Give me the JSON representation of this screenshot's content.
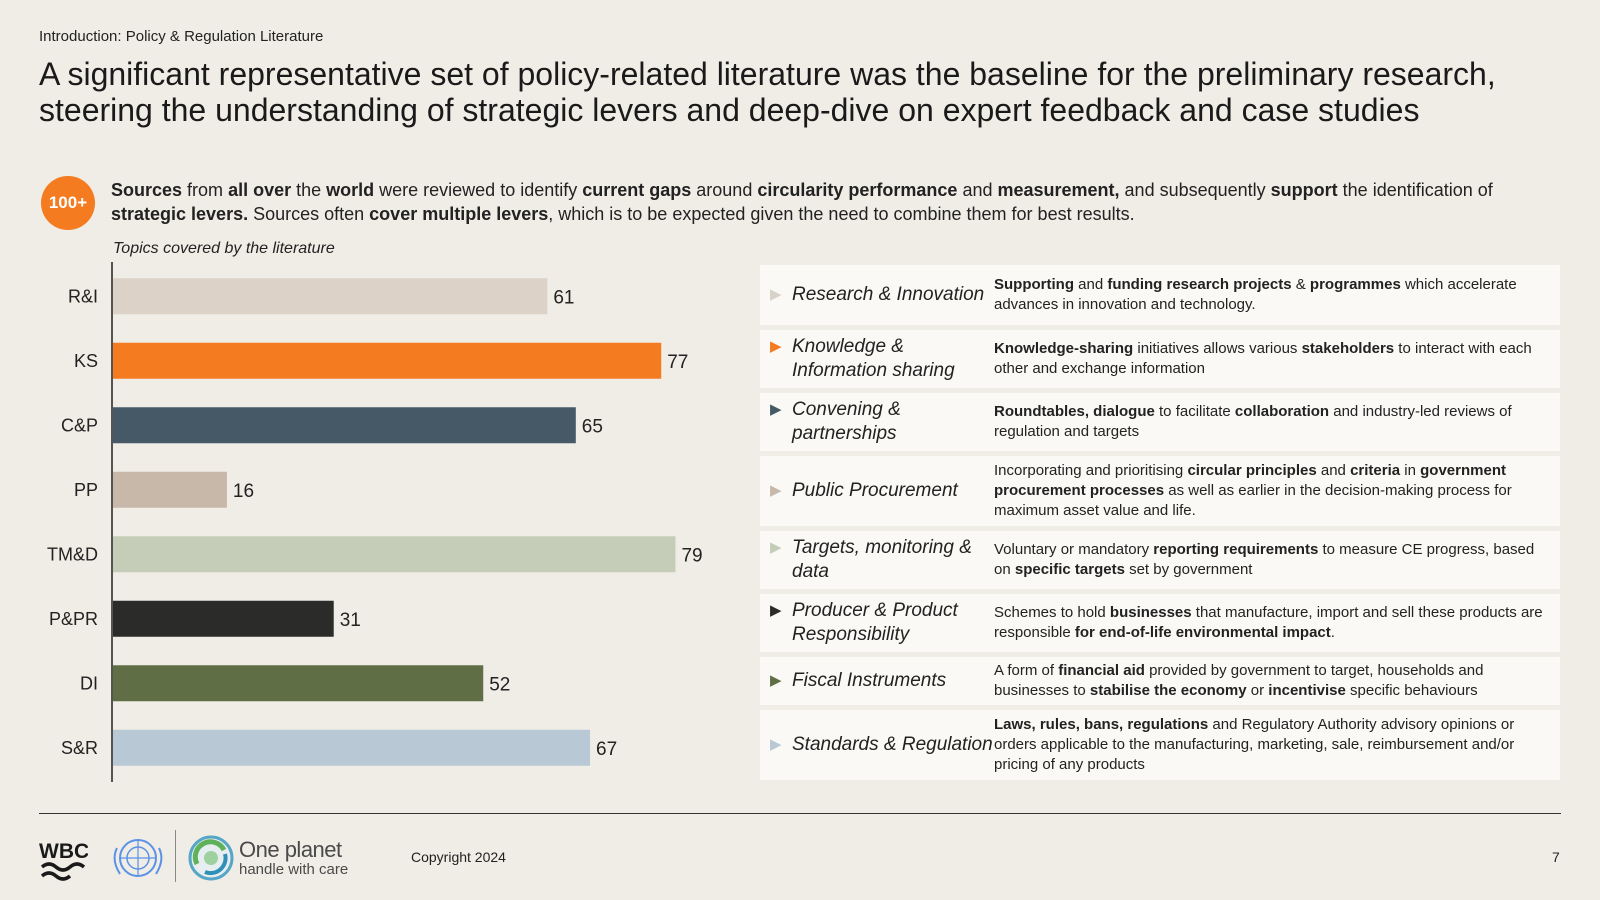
{
  "breadcrumb": "Introduction: Policy & Regulation Literature",
  "headline": "A significant representative set of policy-related literature was the baseline for the preliminary research, steering the understanding of strategic levers and deep-dive on expert feedback and case studies",
  "badge": "100+",
  "intro": {
    "segments": [
      {
        "t": "Sources",
        "b": true
      },
      {
        "t": " from ",
        "b": false
      },
      {
        "t": "all over",
        "b": true
      },
      {
        "t": " the ",
        "b": false
      },
      {
        "t": "world",
        "b": true
      },
      {
        "t": " were reviewed to identify ",
        "b": false
      },
      {
        "t": "current gaps",
        "b": true
      },
      {
        "t": " around ",
        "b": false
      },
      {
        "t": "circularity performance",
        "b": true
      },
      {
        "t": " and ",
        "b": false
      },
      {
        "t": "measurement,",
        "b": true
      },
      {
        "t": " and subsequently ",
        "b": false
      },
      {
        "t": "support",
        "b": true
      },
      {
        "t": " the identification of ",
        "b": false
      },
      {
        "t": "strategic levers.",
        "b": true
      },
      {
        "t": " Sources often ",
        "b": false
      },
      {
        "t": "cover multiple levers",
        "b": true
      },
      {
        "t": ", which is to be expected given the need to combine them for best results.",
        "b": false
      }
    ]
  },
  "chart_caption": "Topics covered by the literature",
  "chart_data": {
    "type": "bar",
    "orientation": "horizontal",
    "title": "",
    "categories": [
      "R&I",
      "KS",
      "C&P",
      "PP",
      "TM&D",
      "P&PR",
      "DI",
      "S&R"
    ],
    "values": [
      61,
      77,
      65,
      16,
      79,
      31,
      52,
      67
    ],
    "colors": [
      "#ddd2c8",
      "#f47b20",
      "#455a66",
      "#c8b8aa",
      "#c5cdb9",
      "#2b2b29",
      "#5f6e45",
      "#b9c8d5"
    ],
    "data_labels": true,
    "grid": false
  },
  "levers": [
    {
      "name": "Research & Innovation",
      "arrow_color": "#d9d2c9",
      "desc": [
        {
          "t": "Supporting",
          "b": true
        },
        {
          "t": " and ",
          "b": false
        },
        {
          "t": "funding research projects",
          "b": true
        },
        {
          "t": " & ",
          "b": false
        },
        {
          "t": "programmes",
          "b": true
        },
        {
          "t": " which accelerate advances in innovation and technology.",
          "b": false
        }
      ]
    },
    {
      "name": "Knowledge & Information sharing",
      "arrow_color": "#f47b20",
      "desc": [
        {
          "t": "Knowledge-sharing",
          "b": true
        },
        {
          "t": " initiatives allows various ",
          "b": false
        },
        {
          "t": "stakeholders",
          "b": true
        },
        {
          "t": " to interact with each other and exchange information",
          "b": false
        }
      ]
    },
    {
      "name": "Convening & partnerships",
      "arrow_color": "#455a66",
      "desc": [
        {
          "t": "Roundtables, dialogue",
          "b": true
        },
        {
          "t": " to facilitate ",
          "b": false
        },
        {
          "t": "collaboration",
          "b": true
        },
        {
          "t": " and industry-led reviews of regulation and targets",
          "b": false
        }
      ]
    },
    {
      "name": "Public Procurement",
      "arrow_color": "#c8b8aa",
      "desc": [
        {
          "t": "Incorporating and prioritising ",
          "b": false
        },
        {
          "t": "circular principles",
          "b": true
        },
        {
          "t": " and ",
          "b": false
        },
        {
          "t": "criteria",
          "b": true
        },
        {
          "t": " in ",
          "b": false
        },
        {
          "t": "government procurement processes",
          "b": true
        },
        {
          "t": " as well as earlier in the decision-making process for maximum asset value and life.",
          "b": false
        }
      ]
    },
    {
      "name": "Targets, monitoring & data",
      "arrow_color": "#c5cdb9",
      "desc": [
        {
          "t": "Voluntary or mandatory ",
          "b": false
        },
        {
          "t": "reporting requirements",
          "b": true
        },
        {
          "t": " to measure CE progress, based on ",
          "b": false
        },
        {
          "t": "specific targets",
          "b": true
        },
        {
          "t": " set by government",
          "b": false
        }
      ]
    },
    {
      "name": "Producer & Product Responsibility",
      "arrow_color": "#2b2b29",
      "desc": [
        {
          "t": "Schemes to hold ",
          "b": false
        },
        {
          "t": "businesses",
          "b": true
        },
        {
          "t": " that manufacture, import and sell these products are responsible ",
          "b": false
        },
        {
          "t": "for end-of-life environmental impact",
          "b": true
        },
        {
          "t": ".",
          "b": false
        }
      ]
    },
    {
      "name": "Fiscal Instruments",
      "arrow_color": "#5f6e45",
      "desc": [
        {
          "t": "A form of ",
          "b": false
        },
        {
          "t": "financial aid",
          "b": true
        },
        {
          "t": " provided by government to target, households and businesses to ",
          "b": false
        },
        {
          "t": "stabilise the economy",
          "b": true
        },
        {
          "t": " or ",
          "b": false
        },
        {
          "t": "incentivise",
          "b": true
        },
        {
          "t": " specific behaviours",
          "b": false
        }
      ]
    },
    {
      "name": "Standards & Regulation",
      "arrow_color": "#b9c8d5",
      "desc": [
        {
          "t": "Laws, rules, bans, regulations",
          "b": true
        },
        {
          "t": " and Regulatory Authority advisory opinions or orders applicable to the manufacturing, marketing, sale, reimbursement and/or pricing of any products",
          "b": false
        }
      ]
    }
  ],
  "footer": {
    "logo_wbc": "WBC",
    "brand_title": "One planet",
    "brand_subtitle": "handle with care",
    "copyright": "Copyright 2024",
    "page_number": "7"
  }
}
